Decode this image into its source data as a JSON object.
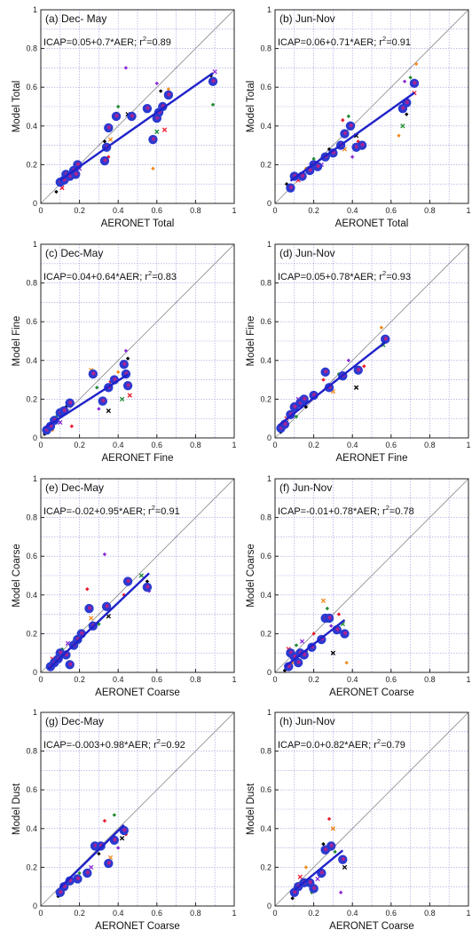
{
  "colors": {
    "fit_line": "#1f22c8",
    "one_to_one": "#8c8c8c",
    "grid": "#9a9ae0",
    "big_marker_outer": "#2a3ad0",
    "big_marker_inner": "#c0208a",
    "small_markers": [
      "#000000",
      "#e8192c",
      "#f28a1e",
      "#1e8a2e",
      "#8a2bd8"
    ]
  },
  "chart_data": [
    {
      "type": "scatter",
      "title": "(a) Dec- May",
      "equation": "ICAP=0.05+0.7*AER; r",
      "equation_sup": "2",
      "equation_tail": "=0.89",
      "xlabel": "AERONET Total",
      "ylabel": "Model Total",
      "xlim": [
        0,
        1
      ],
      "ylim": [
        0,
        1
      ],
      "xticks": [
        "0",
        "0.2",
        "0.4",
        "0.6",
        "0.8",
        "1"
      ],
      "yticks": [
        "0",
        "0.2",
        "0.4",
        "0.6",
        "0.8",
        "1"
      ],
      "grid": true,
      "fit": {
        "intercept": 0.05,
        "slope": 0.7,
        "x_range": [
          0.1,
          0.89
        ]
      },
      "points": [
        [
          0.1,
          0.11
        ],
        [
          0.12,
          0.12
        ],
        [
          0.13,
          0.15
        ],
        [
          0.15,
          0.14
        ],
        [
          0.17,
          0.17
        ],
        [
          0.18,
          0.15
        ],
        [
          0.19,
          0.2
        ],
        [
          0.33,
          0.22
        ],
        [
          0.34,
          0.29
        ],
        [
          0.35,
          0.39
        ],
        [
          0.39,
          0.45
        ],
        [
          0.47,
          0.45
        ],
        [
          0.55,
          0.49
        ],
        [
          0.58,
          0.33
        ],
        [
          0.6,
          0.44
        ],
        [
          0.61,
          0.47
        ],
        [
          0.63,
          0.5
        ],
        [
          0.66,
          0.56
        ],
        [
          0.89,
          0.63
        ]
      ],
      "small_points": [
        [
          0.08,
          0.06
        ],
        [
          0.11,
          0.08
        ],
        [
          0.14,
          0.12
        ],
        [
          0.16,
          0.13
        ],
        [
          0.2,
          0.18
        ],
        [
          0.33,
          0.32
        ],
        [
          0.35,
          0.24
        ],
        [
          0.36,
          0.33
        ],
        [
          0.4,
          0.5
        ],
        [
          0.44,
          0.7
        ],
        [
          0.45,
          0.46
        ],
        [
          0.48,
          0.46
        ],
        [
          0.58,
          0.18
        ],
        [
          0.6,
          0.37
        ],
        [
          0.6,
          0.62
        ],
        [
          0.62,
          0.58
        ],
        [
          0.64,
          0.38
        ],
        [
          0.66,
          0.59
        ],
        [
          0.89,
          0.51
        ],
        [
          0.9,
          0.68
        ],
        [
          0.88,
          0.66
        ]
      ]
    },
    {
      "type": "scatter",
      "title": "(b) Jun-Nov",
      "equation": "ICAP=0.06+0.71*AER; r",
      "equation_sup": "2",
      "equation_tail": "=0.91",
      "xlabel": "AERONET Total",
      "ylabel": "Model Total",
      "xlim": [
        0,
        1
      ],
      "ylim": [
        0,
        1
      ],
      "xticks": [
        "0",
        "0.2",
        "0.4",
        "0.6",
        "0.8",
        "1"
      ],
      "yticks": [
        "0",
        "0.2",
        "0.4",
        "0.6",
        "0.8",
        "1"
      ],
      "grid": true,
      "fit": {
        "intercept": 0.06,
        "slope": 0.71,
        "x_range": [
          0.08,
          0.72
        ]
      },
      "points": [
        [
          0.08,
          0.08
        ],
        [
          0.1,
          0.14
        ],
        [
          0.14,
          0.14
        ],
        [
          0.18,
          0.17
        ],
        [
          0.2,
          0.2
        ],
        [
          0.22,
          0.19
        ],
        [
          0.26,
          0.24
        ],
        [
          0.3,
          0.26
        ],
        [
          0.34,
          0.3
        ],
        [
          0.36,
          0.36
        ],
        [
          0.39,
          0.4
        ],
        [
          0.42,
          0.29
        ],
        [
          0.45,
          0.3
        ],
        [
          0.66,
          0.49
        ],
        [
          0.68,
          0.52
        ],
        [
          0.72,
          0.62
        ]
      ],
      "small_points": [
        [
          0.06,
          0.1
        ],
        [
          0.12,
          0.12
        ],
        [
          0.16,
          0.18
        ],
        [
          0.2,
          0.23
        ],
        [
          0.24,
          0.2
        ],
        [
          0.28,
          0.28
        ],
        [
          0.35,
          0.43
        ],
        [
          0.36,
          0.28
        ],
        [
          0.38,
          0.45
        ],
        [
          0.4,
          0.24
        ],
        [
          0.42,
          0.35
        ],
        [
          0.43,
          0.32
        ],
        [
          0.64,
          0.35
        ],
        [
          0.66,
          0.4
        ],
        [
          0.67,
          0.63
        ],
        [
          0.68,
          0.46
        ],
        [
          0.72,
          0.57
        ],
        [
          0.73,
          0.72
        ],
        [
          0.7,
          0.65
        ]
      ]
    },
    {
      "type": "scatter",
      "title": "(c) Dec-May",
      "equation": "ICAP=0.04+0.64*AER; r",
      "equation_sup": "2",
      "equation_tail": "=0.83",
      "xlabel": "AERONET Fine",
      "ylabel": "Model Fine",
      "xlim": [
        0,
        1
      ],
      "ylim": [
        0,
        1
      ],
      "xticks": [
        "0",
        "0.2",
        "0.4",
        "0.6",
        "0.8",
        "1"
      ],
      "yticks": [
        "0",
        "0.2",
        "0.4",
        "0.6",
        "0.8",
        "1"
      ],
      "grid": true,
      "fit": {
        "intercept": 0.04,
        "slope": 0.64,
        "x_range": [
          0.02,
          0.45
        ]
      },
      "points": [
        [
          0.03,
          0.04
        ],
        [
          0.05,
          0.06
        ],
        [
          0.07,
          0.09
        ],
        [
          0.1,
          0.13
        ],
        [
          0.12,
          0.14
        ],
        [
          0.15,
          0.18
        ],
        [
          0.27,
          0.33
        ],
        [
          0.32,
          0.19
        ],
        [
          0.35,
          0.26
        ],
        [
          0.38,
          0.3
        ],
        [
          0.43,
          0.38
        ],
        [
          0.44,
          0.33
        ],
        [
          0.45,
          0.27
        ]
      ],
      "small_points": [
        [
          0.02,
          0.02
        ],
        [
          0.04,
          0.05
        ],
        [
          0.06,
          0.04
        ],
        [
          0.08,
          0.11
        ],
        [
          0.1,
          0.08
        ],
        [
          0.13,
          0.16
        ],
        [
          0.16,
          0.06
        ],
        [
          0.26,
          0.35
        ],
        [
          0.29,
          0.26
        ],
        [
          0.3,
          0.15
        ],
        [
          0.35,
          0.14
        ],
        [
          0.36,
          0.29
        ],
        [
          0.4,
          0.34
        ],
        [
          0.42,
          0.2
        ],
        [
          0.44,
          0.45
        ],
        [
          0.45,
          0.41
        ],
        [
          0.46,
          0.22
        ]
      ]
    },
    {
      "type": "scatter",
      "title": "(d) Jun-Nov",
      "equation": "ICAP=0.05+0.78*AER; r",
      "equation_sup": "2",
      "equation_tail": "=0.93",
      "xlabel": "AERONET Fine",
      "ylabel": "Model Fine",
      "xlim": [
        0,
        1
      ],
      "ylim": [
        0,
        1
      ],
      "xticks": [
        "0",
        "0.2",
        "0.4",
        "0.6",
        "0.8",
        "1"
      ],
      "yticks": [
        "0",
        "0.2",
        "0.4",
        "0.6",
        "0.8",
        "1"
      ],
      "grid": true,
      "fit": {
        "intercept": 0.05,
        "slope": 0.78,
        "x_range": [
          0.02,
          0.57
        ]
      },
      "points": [
        [
          0.03,
          0.05
        ],
        [
          0.05,
          0.07
        ],
        [
          0.08,
          0.12
        ],
        [
          0.1,
          0.16
        ],
        [
          0.13,
          0.18
        ],
        [
          0.15,
          0.2
        ],
        [
          0.2,
          0.22
        ],
        [
          0.26,
          0.34
        ],
        [
          0.28,
          0.26
        ],
        [
          0.35,
          0.32
        ],
        [
          0.43,
          0.35
        ],
        [
          0.57,
          0.51
        ]
      ],
      "small_points": [
        [
          0.03,
          0.03
        ],
        [
          0.06,
          0.1
        ],
        [
          0.09,
          0.13
        ],
        [
          0.11,
          0.11
        ],
        [
          0.12,
          0.2
        ],
        [
          0.16,
          0.16
        ],
        [
          0.25,
          0.3
        ],
        [
          0.3,
          0.24
        ],
        [
          0.33,
          0.33
        ],
        [
          0.38,
          0.4
        ],
        [
          0.42,
          0.26
        ],
        [
          0.46,
          0.37
        ],
        [
          0.55,
          0.57
        ],
        [
          0.56,
          0.48
        ]
      ]
    },
    {
      "type": "scatter",
      "title": "(e) Dec-May",
      "equation": "ICAP=-0.02+0.95*AER; r",
      "equation_sup": "2",
      "equation_tail": "=0.91",
      "xlabel": "AERONET Coarse",
      "ylabel": "Model Coarse",
      "xlim": [
        0,
        1
      ],
      "ylim": [
        0,
        1
      ],
      "xticks": [
        "0",
        "0.2",
        "0.4",
        "0.6",
        "0.8",
        "1"
      ],
      "yticks": [
        "0",
        "0.2",
        "0.4",
        "0.6",
        "0.8",
        "1"
      ],
      "grid": true,
      "fit": {
        "intercept": -0.02,
        "slope": 0.95,
        "x_range": [
          0.04,
          0.56
        ]
      },
      "points": [
        [
          0.05,
          0.03
        ],
        [
          0.07,
          0.05
        ],
        [
          0.09,
          0.07
        ],
        [
          0.1,
          0.1
        ],
        [
          0.13,
          0.09
        ],
        [
          0.15,
          0.04
        ],
        [
          0.17,
          0.14
        ],
        [
          0.19,
          0.17
        ],
        [
          0.21,
          0.2
        ],
        [
          0.25,
          0.33
        ],
        [
          0.27,
          0.24
        ],
        [
          0.34,
          0.34
        ],
        [
          0.45,
          0.47
        ],
        [
          0.55,
          0.44
        ]
      ],
      "small_points": [
        [
          0.04,
          0.02
        ],
        [
          0.06,
          0.07
        ],
        [
          0.08,
          0.04
        ],
        [
          0.11,
          0.12
        ],
        [
          0.14,
          0.15
        ],
        [
          0.18,
          0.16
        ],
        [
          0.24,
          0.43
        ],
        [
          0.26,
          0.28
        ],
        [
          0.3,
          0.25
        ],
        [
          0.33,
          0.61
        ],
        [
          0.35,
          0.29
        ],
        [
          0.43,
          0.4
        ],
        [
          0.46,
          0.46
        ],
        [
          0.52,
          0.5
        ],
        [
          0.56,
          0.42
        ],
        [
          0.55,
          0.47
        ]
      ]
    },
    {
      "type": "scatter",
      "title": "(f) Jun-Nov",
      "equation": "ICAP=-0.01+0.78*AER; r",
      "equation_sup": "2",
      "equation_tail": "=0.78",
      "xlabel": "AERONET Coarse",
      "ylabel": "Model Coarse",
      "xlim": [
        0,
        1
      ],
      "ylim": [
        0,
        1
      ],
      "xticks": [
        "0",
        "0.2",
        "0.4",
        "0.6",
        "0.8",
        "1"
      ],
      "yticks": [
        "0",
        "0.2",
        "0.4",
        "0.6",
        "0.8",
        "1"
      ],
      "grid": true,
      "fit": {
        "intercept": -0.01,
        "slope": 0.78,
        "x_range": [
          0.05,
          0.36
        ]
      },
      "points": [
        [
          0.07,
          0.03
        ],
        [
          0.08,
          0.1
        ],
        [
          0.1,
          0.08
        ],
        [
          0.12,
          0.05
        ],
        [
          0.13,
          0.1
        ],
        [
          0.15,
          0.09
        ],
        [
          0.19,
          0.13
        ],
        [
          0.24,
          0.17
        ],
        [
          0.26,
          0.28
        ],
        [
          0.28,
          0.28
        ],
        [
          0.32,
          0.22
        ],
        [
          0.36,
          0.2
        ]
      ],
      "small_points": [
        [
          0.05,
          0.01
        ],
        [
          0.07,
          0.12
        ],
        [
          0.09,
          0.05
        ],
        [
          0.11,
          0.14
        ],
        [
          0.14,
          0.16
        ],
        [
          0.16,
          0.11
        ],
        [
          0.2,
          0.2
        ],
        [
          0.25,
          0.37
        ],
        [
          0.27,
          0.33
        ],
        [
          0.29,
          0.24
        ],
        [
          0.3,
          0.1
        ],
        [
          0.33,
          0.3
        ],
        [
          0.37,
          0.05
        ],
        [
          0.35,
          0.25
        ]
      ]
    },
    {
      "type": "scatter",
      "title": "(g) Dec-May",
      "equation": "ICAP=-0.003+0.98*AER; r",
      "equation_sup": "2",
      "equation_tail": "=0.92",
      "xlabel": "AERONET Coarse",
      "ylabel": "Model Dust",
      "xlim": [
        0,
        1
      ],
      "ylim": [
        0,
        1
      ],
      "xticks": [
        "0",
        "0.2",
        "0.4",
        "0.6",
        "0.8",
        "1"
      ],
      "yticks": [
        "0",
        "0.2",
        "0.4",
        "0.6",
        "0.8",
        "1"
      ],
      "grid": true,
      "fit": {
        "intercept": -0.003,
        "slope": 0.98,
        "x_range": [
          0.1,
          0.43
        ]
      },
      "points": [
        [
          0.1,
          0.07
        ],
        [
          0.12,
          0.1
        ],
        [
          0.15,
          0.13
        ],
        [
          0.19,
          0.14
        ],
        [
          0.24,
          0.17
        ],
        [
          0.28,
          0.31
        ],
        [
          0.31,
          0.31
        ],
        [
          0.35,
          0.22
        ],
        [
          0.38,
          0.34
        ],
        [
          0.43,
          0.39
        ]
      ],
      "small_points": [
        [
          0.09,
          0.05
        ],
        [
          0.11,
          0.08
        ],
        [
          0.14,
          0.11
        ],
        [
          0.2,
          0.17
        ],
        [
          0.26,
          0.2
        ],
        [
          0.3,
          0.27
        ],
        [
          0.33,
          0.44
        ],
        [
          0.36,
          0.25
        ],
        [
          0.38,
          0.47
        ],
        [
          0.4,
          0.3
        ],
        [
          0.42,
          0.35
        ],
        [
          0.44,
          0.37
        ]
      ]
    },
    {
      "type": "scatter",
      "title": "(h) Jun-Nov",
      "equation": "ICAP=0.0+0.82*AER; r",
      "equation_sup": "2",
      "equation_tail": "=0.79",
      "xlabel": "AERONET Coarse",
      "ylabel": "Model Dust",
      "xlim": [
        0,
        1
      ],
      "ylim": [
        0,
        1
      ],
      "xticks": [
        "0",
        "0.2",
        "0.4",
        "0.6",
        "0.8",
        "1"
      ],
      "yticks": [
        "0",
        "0.2",
        "0.4",
        "0.6",
        "0.8",
        "1"
      ],
      "grid": true,
      "fit": {
        "intercept": 0.0,
        "slope": 0.82,
        "x_range": [
          0.1,
          0.35
        ]
      },
      "points": [
        [
          0.1,
          0.07
        ],
        [
          0.12,
          0.1
        ],
        [
          0.15,
          0.12
        ],
        [
          0.18,
          0.12
        ],
        [
          0.2,
          0.09
        ],
        [
          0.24,
          0.17
        ],
        [
          0.26,
          0.29
        ],
        [
          0.29,
          0.31
        ],
        [
          0.35,
          0.24
        ]
      ],
      "small_points": [
        [
          0.09,
          0.04
        ],
        [
          0.13,
          0.15
        ],
        [
          0.16,
          0.2
        ],
        [
          0.19,
          0.07
        ],
        [
          0.22,
          0.14
        ],
        [
          0.25,
          0.32
        ],
        [
          0.28,
          0.45
        ],
        [
          0.3,
          0.4
        ],
        [
          0.31,
          0.28
        ],
        [
          0.34,
          0.07
        ],
        [
          0.36,
          0.2
        ]
      ]
    }
  ]
}
